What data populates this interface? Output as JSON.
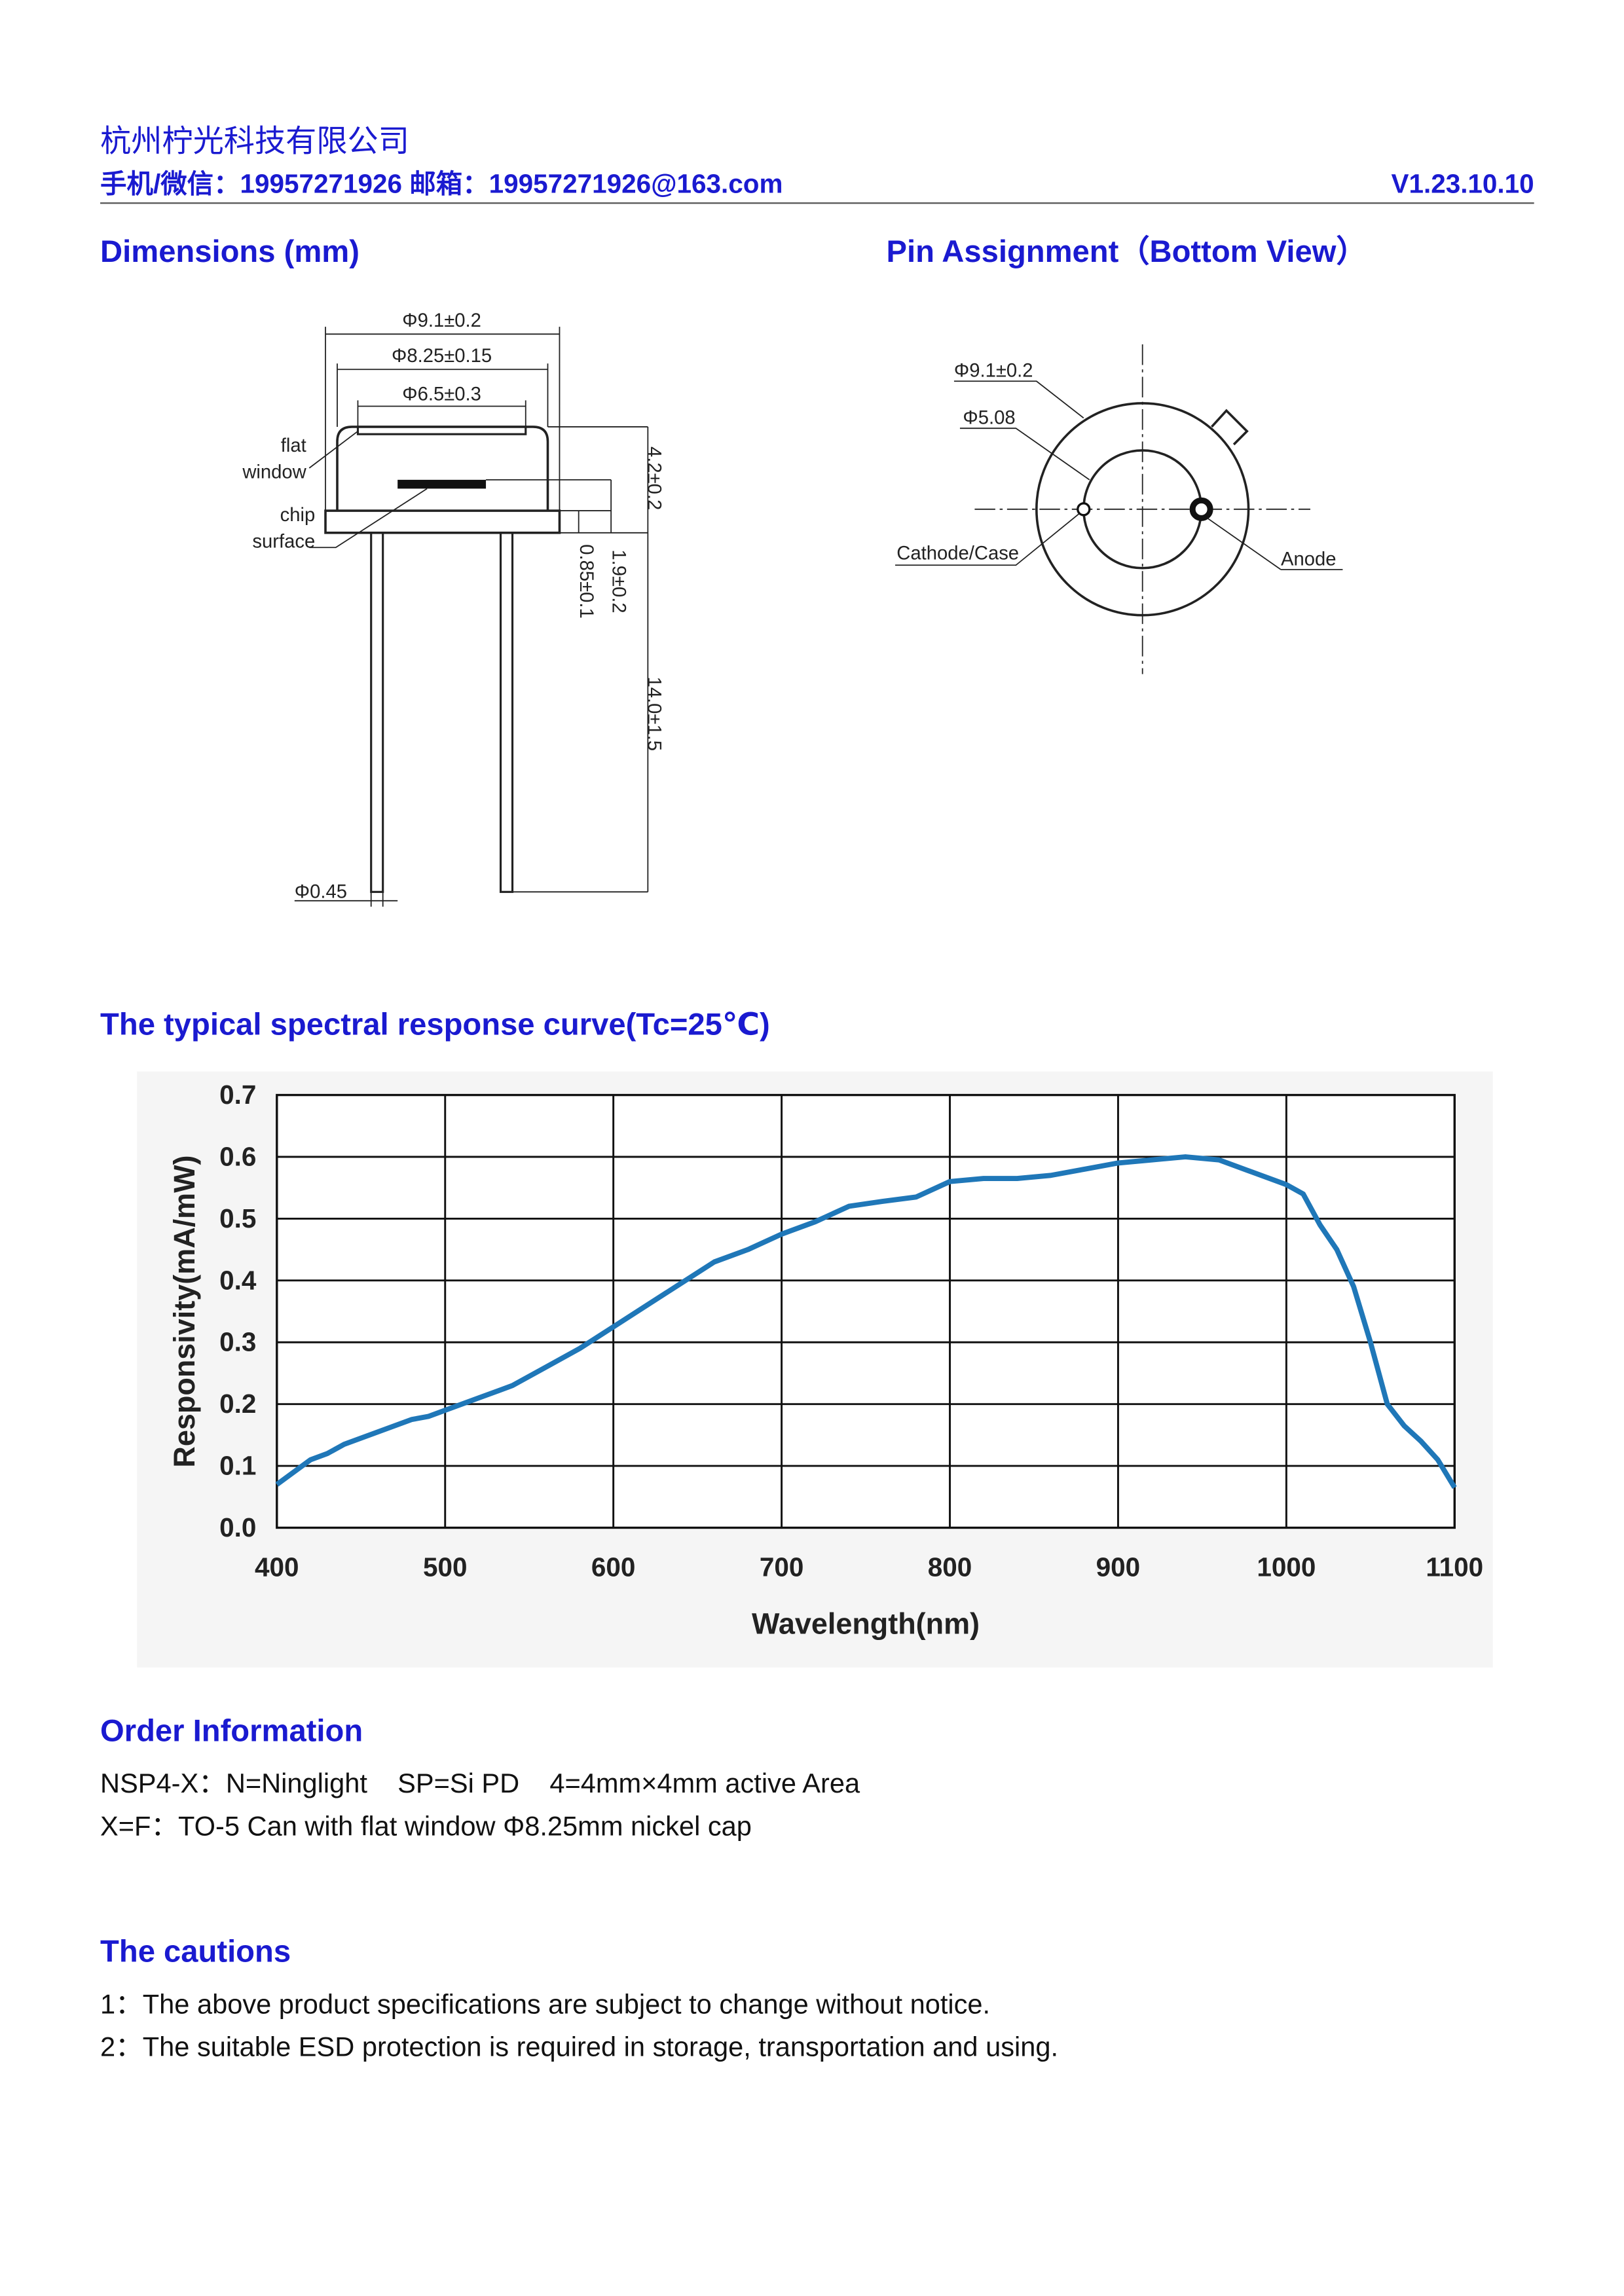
{
  "header": {
    "company": "杭州柠光科技有限公司",
    "contact": "手机/微信：19957271926  邮箱：19957271926@163.com",
    "version": "V1.23.10.10"
  },
  "dimensions": {
    "title": "Dimensions (mm)",
    "d_outer": "Φ9.1±0.2",
    "d_cap": "Φ8.25±0.15",
    "d_window": "Φ6.5±0.3",
    "flat": "flat",
    "window": "window",
    "chip": "chip",
    "surface": "surface",
    "h_cap": "4.2±0.2",
    "h_chip": "1.9±0.2",
    "h_flange": "0.85±0.1",
    "lead_len": "14.0±1.5",
    "lead_d": "Φ0.45"
  },
  "pins": {
    "title": "Pin Assignment（Bottom View）",
    "d_outer": "Φ9.1±0.2",
    "d_pins": "Φ5.08",
    "cathode": "Cathode/Case",
    "anode": "Anode"
  },
  "spectral_title": "The typical spectral response curve(Tc=25℃)",
  "chart_data": {
    "type": "line",
    "xlabel": "Wavelength(nm)",
    "ylabel": "Responsivity(mA/mW)",
    "color": "#1f77b8",
    "grid": true,
    "x": [
      400,
      410,
      420,
      430,
      440,
      460,
      480,
      490,
      500,
      520,
      540,
      560,
      580,
      600,
      620,
      640,
      660,
      680,
      700,
      720,
      740,
      760,
      780,
      800,
      820,
      840,
      860,
      880,
      900,
      920,
      940,
      960,
      980,
      1000,
      1010,
      1020,
      1030,
      1040,
      1050,
      1060,
      1070,
      1080,
      1090,
      1100
    ],
    "values": [
      0.07,
      0.09,
      0.11,
      0.12,
      0.135,
      0.155,
      0.175,
      0.18,
      0.19,
      0.21,
      0.23,
      0.26,
      0.29,
      0.325,
      0.36,
      0.395,
      0.43,
      0.45,
      0.475,
      0.495,
      0.52,
      0.528,
      0.535,
      0.56,
      0.565,
      0.565,
      0.57,
      0.58,
      0.59,
      0.595,
      0.6,
      0.595,
      0.575,
      0.555,
      0.54,
      0.49,
      0.45,
      0.39,
      0.3,
      0.2,
      0.165,
      0.14,
      0.11,
      0.065
    ],
    "xlim": [
      400,
      1100
    ],
    "ylim": [
      0,
      0.7
    ],
    "xticks": [
      400,
      500,
      600,
      700,
      800,
      900,
      1000,
      1100
    ],
    "yticks": [
      {
        "value": 0,
        "label": "0.0"
      },
      0.1,
      0.2,
      0.3,
      0.4,
      0.5,
      0.6,
      0.7
    ]
  },
  "order": {
    "title": "Order Information",
    "lines": [
      "NSP4-X：N=Ninglight    SP=Si PD    4=4mm×4mm active Area",
      "X=F：TO-5 Can with flat window Φ8.25mm nickel cap"
    ]
  },
  "cautions": {
    "title": "The cautions",
    "lines": [
      "1：The above product specifications are subject to change without notice.",
      "2：The suitable ESD protection is required in storage, transportation and using."
    ]
  }
}
